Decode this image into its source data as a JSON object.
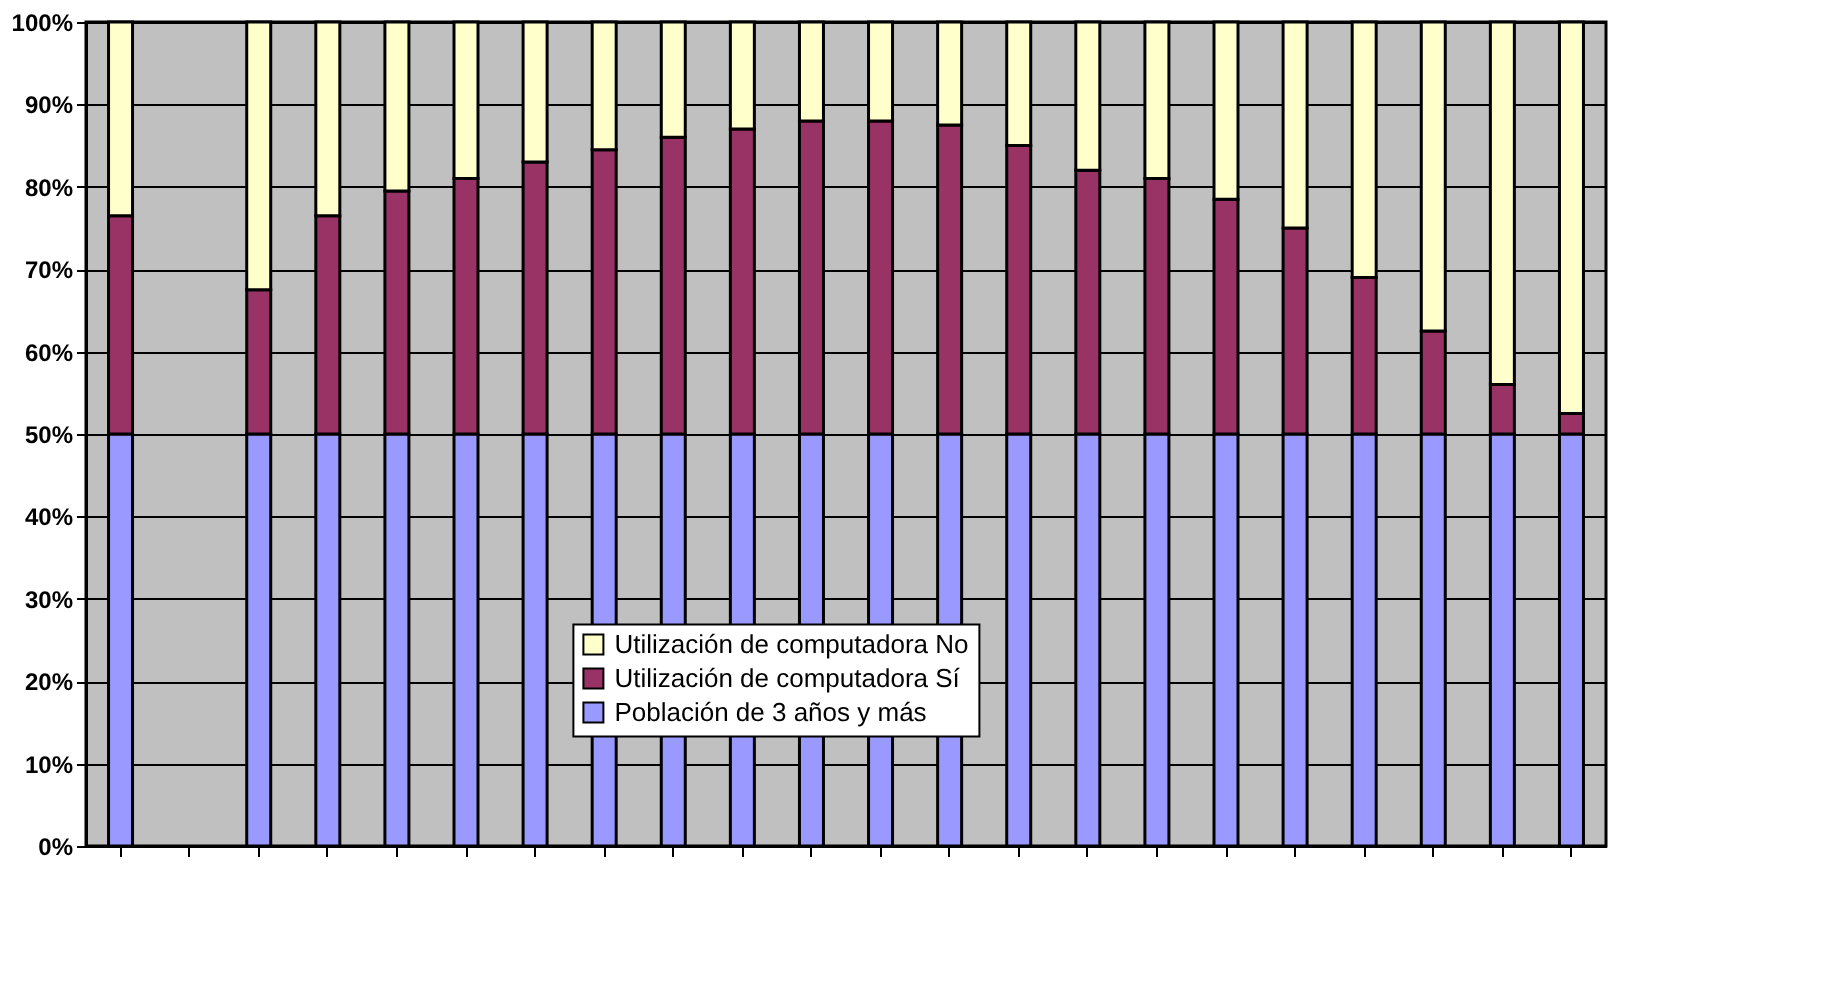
{
  "chart_data": {
    "type": "bar",
    "stacked": true,
    "categories": [
      null,
      null,
      null,
      null,
      null,
      null,
      null,
      null,
      null,
      null,
      null,
      null,
      null,
      null,
      null,
      null,
      null,
      null,
      null,
      null,
      null,
      null
    ],
    "series": [
      {
        "name": "Población de 3 años y más",
        "color": "#9999ff",
        "values": [
          50,
          null,
          50,
          50,
          50,
          50,
          50,
          50,
          50,
          50,
          50,
          50,
          50,
          50,
          50,
          50,
          50,
          50,
          50,
          50,
          50,
          50
        ]
      },
      {
        "name": "Utilización de computadora Sí",
        "color": "#993366",
        "values": [
          26.5,
          null,
          17.5,
          26.5,
          29.5,
          31,
          33,
          34.5,
          36,
          37,
          38,
          38,
          37.5,
          35,
          32,
          31,
          28.5,
          25,
          19,
          12.5,
          6,
          2.5
        ]
      },
      {
        "name": "Utilización de computadora No",
        "color": "#ffffcc",
        "values": [
          23.5,
          null,
          32.5,
          23.5,
          20.5,
          19,
          17,
          15.5,
          14,
          13,
          12,
          12,
          12.5,
          15,
          18,
          19,
          21.5,
          25,
          31,
          37.5,
          44,
          47.5
        ]
      }
    ],
    "ylim": [
      0,
      100
    ],
    "yticks": [
      {
        "value": 0,
        "label": "0%"
      },
      {
        "value": 10,
        "label": "10%"
      },
      {
        "value": 20,
        "label": "20%"
      },
      {
        "value": 30,
        "label": "30%"
      },
      {
        "value": 40,
        "label": "40%"
      },
      {
        "value": 50,
        "label": "50%"
      },
      {
        "value": 60,
        "label": "60%"
      },
      {
        "value": 70,
        "label": "70%"
      },
      {
        "value": 80,
        "label": "80%"
      },
      {
        "value": 90,
        "label": "90%"
      },
      {
        "value": 100,
        "label": "100%"
      }
    ],
    "grid": "y",
    "legend": "bottom"
  }
}
